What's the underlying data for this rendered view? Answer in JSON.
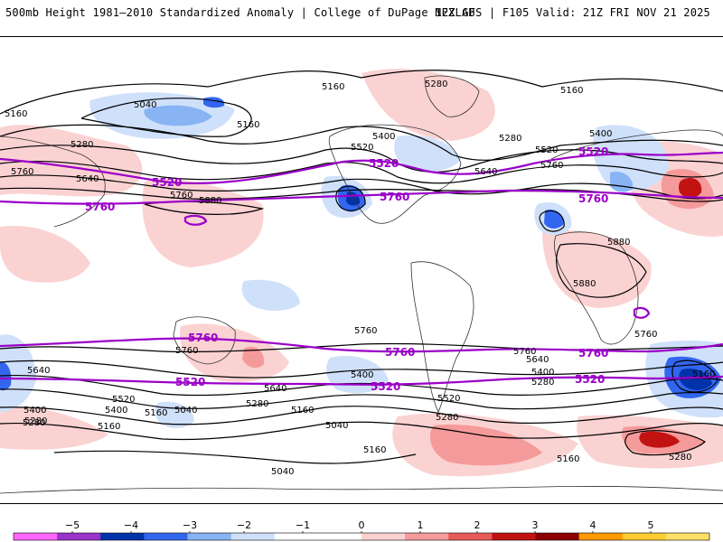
{
  "header": {
    "title": "500mb Height 1981–2010 Standardized Anomaly | College of DuPage NEXLAB",
    "run_info": "12Z GFS | F105 Valid: 21Z FRI NOV 21 2025"
  },
  "colors": {
    "contour": "#000000",
    "highlight_contour": "#9b00c8",
    "coastline": "#333333"
  },
  "contour_labels": {
    "black": [
      "5160",
      "5040",
      "5160",
      "5280",
      "5160",
      "5160",
      "5520",
      "5400",
      "5280",
      "5520",
      "5640",
      "5280",
      "5400",
      "5760",
      "5640",
      "5760",
      "5880",
      "5760",
      "5880",
      "5880",
      "5760",
      "5640",
      "5760",
      "5640",
      "5400",
      "5520",
      "5400",
      "5280",
      "5160",
      "5040",
      "5040",
      "5160",
      "5280",
      "5400",
      "5520",
      "5280",
      "5160",
      "5040",
      "5160",
      "5640",
      "5760",
      "5400",
      "5280",
      "5160",
      "5280",
      "5160",
      "5760",
      "5280"
    ],
    "purple": [
      "5520",
      "5760",
      "5520",
      "5760",
      "5520",
      "5760",
      "5760",
      "5760",
      "5760",
      "5520",
      "5520",
      "5520"
    ]
  },
  "legend": {
    "ticks": [
      "−5",
      "−4",
      "−3",
      "−2",
      "−1",
      "0",
      "1",
      "2",
      "3",
      "4",
      "5"
    ],
    "colors": [
      "#ff66ff",
      "#9933cc",
      "#0033aa",
      "#3366ee",
      "#88b4f4",
      "#cfe0fa",
      "#ffffff",
      "#ffffff",
      "#fbd2d2",
      "#f59a9a",
      "#e85a5a",
      "#c21313",
      "#8b0000",
      "#ff9900",
      "#ffcc33",
      "#ffe066"
    ]
  }
}
